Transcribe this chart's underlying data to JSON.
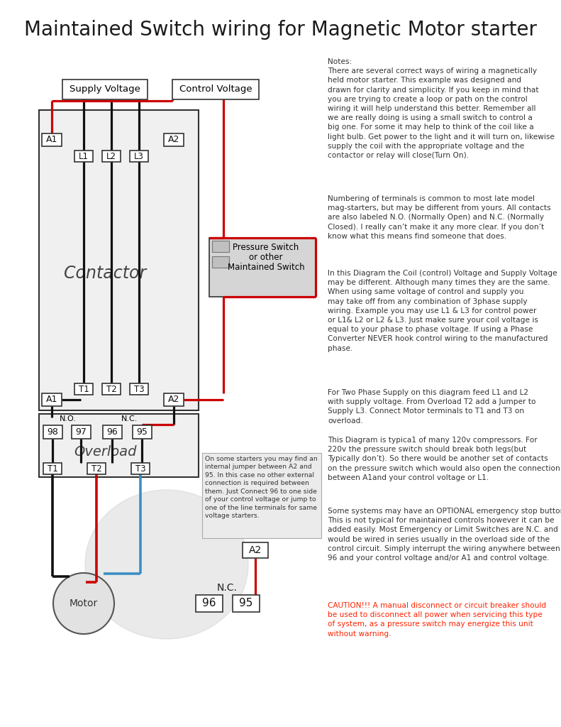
{
  "title": "Maintained Switch wiring for Magnetic Motor starter",
  "bg": "#ffffff",
  "notes1": "Notes:\nThere are several correct ways of wiring a magnetically\nheld motor starter. This example was designed and\ndrawn for clarity and simplicity. If you keep in mind that\nyou are trying to create a loop or path on the control\nwiring it will help understand this better. Remember all\nwe are really doing is using a small switch to control a\nbig one. For some it may help to think of the coil like a\nlight bulb. Get power to the light and it will turn on, likewise\nsupply the coil with the appropriate voltage and the\ncontactor or relay will close(Turn On).",
  "notes2": "Numbering of terminals is common to most late model\nmag-starters, but may be different from yours. All contacts\nare also labeled N.O. (Normally Open) and N.C. (Normally\nClosed). I really can’t make it any more clear. If you don’t\nknow what this means find someone that does.",
  "notes3": "In this Diagram the Coil (control) Voltage and Supply Voltage\nmay be different. Although many times they are the same.\nWhen using same voltage of control and supply you\nmay take off from any combination of 3phase supply\nwiring. Example you may use L1 & L3 for control power\nor L1& L2 or L2 & L3. Just make sure your coil voltage is\nequal to your phase to phase voltage. If using a Phase\nConverter NEVER hook control wiring to the manufactured\nphase.",
  "notes4": "For Two Phase Supply on this diagram feed L1 and L2\nwith supply voltage. From Overload T2 add a Jumper to\nSupply L3. Connect Motor terminals to T1 and T3 on\noverload.",
  "notes5": "This Diagram is typica1 of many 120v compressors. For\n220v the pressure switch should break both legs(but\nTypically don’t). So there would be another set of contacts\non the pressure switch which would also open the connection\nbetween A1and your control voltage or L1.",
  "notes6": "Some systems may have an OPTIONAL emergency stop button.\nThis is not typical for maintained controls however it can be\nadded easily. Most Emergency or Limit Switches are N.C. and\nwould be wired in series usually in the overload side of the\ncontrol circuit. Simply interrupt the wiring anywhere between\n96 and your control voltage and/or A1 and control voltage.",
  "caution": "CAUTION!!! A manual disconnect or circuit breaker should\nbe used to disconnect all power when servicing this type\nof system, as a pressure switch may energize this unit\nwithout warning.",
  "caution_color": "#ff2200",
  "callout": "On some starters you may find an\ninternal jumper between A2 and\n95. In this case no other external\nconnection is required between\nthem. Just Connect 96 to one side\nof your control voltage or jump to\none of the line terminals for same\nvoltage starters."
}
